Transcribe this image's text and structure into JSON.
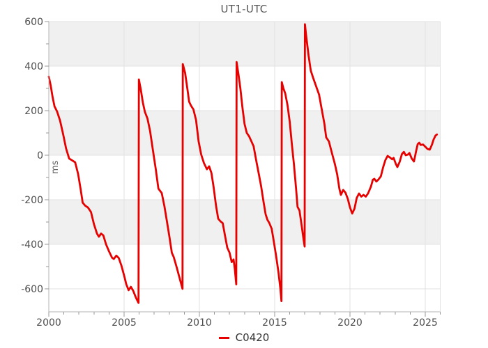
{
  "title": "UT1-UTC",
  "y_unit": "ms",
  "legend": {
    "label": "C0420",
    "swatch_color": "#e60000"
  },
  "chart_data": {
    "type": "line",
    "title": "UT1-UTC",
    "xlabel": "",
    "ylabel": "ms",
    "xlim": [
      2000,
      2026
    ],
    "ylim": [
      -703,
      600
    ],
    "x_major_ticks": [
      2000,
      2005,
      2010,
      2015,
      2020,
      2025
    ],
    "x_minor_step": 1,
    "y_major_ticks": [
      -600,
      -400,
      -200,
      0,
      200,
      400,
      600
    ],
    "y_minor_ticks": [
      -500,
      -300,
      -100,
      100,
      300,
      500
    ],
    "grid_years": [
      2005,
      2010,
      2015,
      2020,
      2025,
      2026
    ],
    "shaded_bands": [
      [
        400,
        600
      ],
      [
        0,
        200
      ],
      [
        -400,
        -200
      ]
    ],
    "colors": {
      "band": "#f0f0f0",
      "grid": "#e2e2e2",
      "axis": "#b3b3b3",
      "tick": "#999999",
      "text": "#4d4d4d",
      "line": "#e60000"
    },
    "legend_position": "bottom-center",
    "series": [
      {
        "name": "C0420",
        "color": "#e60000",
        "points": [
          [
            2000.0,
            353
          ],
          [
            2000.12,
            315
          ],
          [
            2000.25,
            262
          ],
          [
            2000.38,
            219
          ],
          [
            2000.55,
            196
          ],
          [
            2000.75,
            155
          ],
          [
            2000.95,
            95
          ],
          [
            2001.15,
            30
          ],
          [
            2001.35,
            -15
          ],
          [
            2001.55,
            -23
          ],
          [
            2001.75,
            -32
          ],
          [
            2001.95,
            -85
          ],
          [
            2002.12,
            -155
          ],
          [
            2002.25,
            -213
          ],
          [
            2002.42,
            -227
          ],
          [
            2002.6,
            -235
          ],
          [
            2002.8,
            -255
          ],
          [
            2003.0,
            -310
          ],
          [
            2003.2,
            -352
          ],
          [
            2003.33,
            -366
          ],
          [
            2003.47,
            -352
          ],
          [
            2003.62,
            -360
          ],
          [
            2003.8,
            -400
          ],
          [
            2004.0,
            -432
          ],
          [
            2004.2,
            -460
          ],
          [
            2004.32,
            -466
          ],
          [
            2004.48,
            -451
          ],
          [
            2004.65,
            -462
          ],
          [
            2004.82,
            -495
          ],
          [
            2005.0,
            -540
          ],
          [
            2005.15,
            -580
          ],
          [
            2005.3,
            -606
          ],
          [
            2005.45,
            -591
          ],
          [
            2005.6,
            -608
          ],
          [
            2005.78,
            -638
          ],
          [
            2005.96,
            -663
          ],
          [
            2005.98,
            340
          ],
          [
            2006.1,
            298
          ],
          [
            2006.25,
            235
          ],
          [
            2006.38,
            195
          ],
          [
            2006.55,
            165
          ],
          [
            2006.72,
            110
          ],
          [
            2006.9,
            30
          ],
          [
            2007.1,
            -62
          ],
          [
            2007.28,
            -150
          ],
          [
            2007.5,
            -170
          ],
          [
            2007.68,
            -230
          ],
          [
            2007.85,
            -300
          ],
          [
            2008.0,
            -362
          ],
          [
            2008.17,
            -438
          ],
          [
            2008.3,
            -458
          ],
          [
            2008.5,
            -505
          ],
          [
            2008.7,
            -555
          ],
          [
            2008.88,
            -600
          ],
          [
            2008.9,
            409
          ],
          [
            2009.05,
            370
          ],
          [
            2009.2,
            300
          ],
          [
            2009.32,
            240
          ],
          [
            2009.45,
            222
          ],
          [
            2009.6,
            206
          ],
          [
            2009.78,
            158
          ],
          [
            2009.95,
            62
          ],
          [
            2010.12,
            3
          ],
          [
            2010.3,
            -35
          ],
          [
            2010.5,
            -63
          ],
          [
            2010.65,
            -50
          ],
          [
            2010.8,
            -80
          ],
          [
            2010.95,
            -145
          ],
          [
            2011.1,
            -225
          ],
          [
            2011.25,
            -285
          ],
          [
            2011.4,
            -297
          ],
          [
            2011.55,
            -305
          ],
          [
            2011.7,
            -360
          ],
          [
            2011.85,
            -415
          ],
          [
            2012.0,
            -437
          ],
          [
            2012.15,
            -480
          ],
          [
            2012.27,
            -468
          ],
          [
            2012.35,
            -510
          ],
          [
            2012.45,
            -580
          ],
          [
            2012.47,
            418
          ],
          [
            2012.6,
            360
          ],
          [
            2012.72,
            300
          ],
          [
            2012.85,
            218
          ],
          [
            2013.0,
            140
          ],
          [
            2013.15,
            100
          ],
          [
            2013.3,
            85
          ],
          [
            2013.45,
            63
          ],
          [
            2013.6,
            40
          ],
          [
            2013.78,
            -25
          ],
          [
            2013.95,
            -85
          ],
          [
            2014.1,
            -140
          ],
          [
            2014.25,
            -205
          ],
          [
            2014.4,
            -265
          ],
          [
            2014.52,
            -290
          ],
          [
            2014.65,
            -305
          ],
          [
            2014.8,
            -330
          ],
          [
            2014.95,
            -390
          ],
          [
            2015.1,
            -455
          ],
          [
            2015.25,
            -525
          ],
          [
            2015.38,
            -600
          ],
          [
            2015.45,
            -655
          ],
          [
            2015.47,
            328
          ],
          [
            2015.58,
            300
          ],
          [
            2015.7,
            278
          ],
          [
            2015.85,
            225
          ],
          [
            2016.0,
            150
          ],
          [
            2016.15,
            45
          ],
          [
            2016.28,
            -40
          ],
          [
            2016.42,
            -150
          ],
          [
            2016.52,
            -232
          ],
          [
            2016.65,
            -248
          ],
          [
            2016.8,
            -320
          ],
          [
            2016.92,
            -380
          ],
          [
            2016.99,
            -410
          ],
          [
            2017.01,
            588
          ],
          [
            2017.1,
            530
          ],
          [
            2017.25,
            448
          ],
          [
            2017.4,
            380
          ],
          [
            2017.55,
            348
          ],
          [
            2017.75,
            310
          ],
          [
            2017.95,
            272
          ],
          [
            2018.1,
            215
          ],
          [
            2018.3,
            142
          ],
          [
            2018.42,
            80
          ],
          [
            2018.6,
            62
          ],
          [
            2018.8,
            10
          ],
          [
            2019.0,
            -40
          ],
          [
            2019.15,
            -85
          ],
          [
            2019.3,
            -152
          ],
          [
            2019.4,
            -178
          ],
          [
            2019.55,
            -156
          ],
          [
            2019.7,
            -168
          ],
          [
            2019.85,
            -195
          ],
          [
            2020.0,
            -234
          ],
          [
            2020.15,
            -262
          ],
          [
            2020.3,
            -240
          ],
          [
            2020.45,
            -192
          ],
          [
            2020.6,
            -172
          ],
          [
            2020.75,
            -186
          ],
          [
            2020.9,
            -178
          ],
          [
            2021.05,
            -186
          ],
          [
            2021.2,
            -172
          ],
          [
            2021.4,
            -140
          ],
          [
            2021.52,
            -110
          ],
          [
            2021.62,
            -106
          ],
          [
            2021.75,
            -118
          ],
          [
            2021.88,
            -110
          ],
          [
            2022.05,
            -95
          ],
          [
            2022.2,
            -55
          ],
          [
            2022.35,
            -22
          ],
          [
            2022.5,
            -3
          ],
          [
            2022.65,
            -10
          ],
          [
            2022.8,
            -18
          ],
          [
            2022.9,
            -12
          ],
          [
            2023.05,
            -40
          ],
          [
            2023.15,
            -53
          ],
          [
            2023.3,
            -30
          ],
          [
            2023.45,
            5
          ],
          [
            2023.58,
            15
          ],
          [
            2023.7,
            0
          ],
          [
            2023.85,
            3
          ],
          [
            2023.95,
            10
          ],
          [
            2024.1,
            -15
          ],
          [
            2024.25,
            -28
          ],
          [
            2024.4,
            20
          ],
          [
            2024.5,
            50
          ],
          [
            2024.6,
            56
          ],
          [
            2024.7,
            46
          ],
          [
            2024.85,
            48
          ],
          [
            2025.0,
            38
          ],
          [
            2025.15,
            28
          ],
          [
            2025.3,
            25
          ],
          [
            2025.45,
            48
          ],
          [
            2025.55,
            70
          ],
          [
            2025.68,
            88
          ],
          [
            2025.78,
            93
          ]
        ]
      }
    ]
  }
}
